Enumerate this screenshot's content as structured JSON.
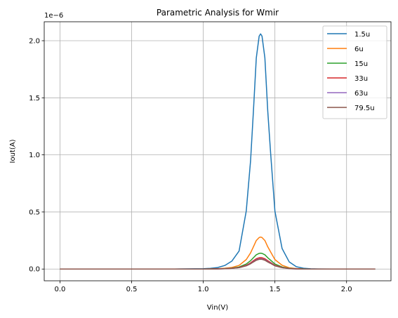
{
  "chart_data": {
    "type": "line",
    "title": "Parametric Analysis for Wmir",
    "xlabel": "Vin(V)",
    "ylabel": "Iout(A)",
    "y_offset_label": "1e−6",
    "xlim": [
      -0.11,
      2.31
    ],
    "ylim": [
      -0.103,
      2.166
    ],
    "x_ticks": [
      0.0,
      0.5,
      1.0,
      1.5,
      2.0
    ],
    "x_tick_labels": [
      "0.0",
      "0.5",
      "1.0",
      "1.5",
      "2.0"
    ],
    "y_ticks": [
      0.0,
      0.5,
      1.0,
      1.5,
      2.0
    ],
    "y_tick_labels": [
      "0.0",
      "0.5",
      "1.0",
      "1.5",
      "2.0"
    ],
    "grid": true,
    "legend_position": "top-right",
    "x": [
      0.0,
      0.2,
      0.4,
      0.6,
      0.8,
      1.0,
      1.05,
      1.1,
      1.15,
      1.2,
      1.25,
      1.3,
      1.33,
      1.35,
      1.37,
      1.39,
      1.4,
      1.41,
      1.43,
      1.45,
      1.47,
      1.5,
      1.55,
      1.6,
      1.65,
      1.7,
      1.75,
      1.8,
      1.9,
      2.0,
      2.2
    ],
    "series": [
      {
        "name": "1.5u",
        "color": "#1f77b4",
        "values": [
          0,
          0,
          0,
          0,
          0,
          0.003,
          0.006,
          0.013,
          0.031,
          0.07,
          0.158,
          0.509,
          0.947,
          1.384,
          1.849,
          2.04,
          2.06,
          2.04,
          1.849,
          1.384,
          1.016,
          0.507,
          0.18,
          0.062,
          0.02,
          0.007,
          0.002,
          0.001,
          0,
          0,
          0
        ]
      },
      {
        "name": "6u",
        "color": "#ff7f0e",
        "values": [
          0,
          0,
          0,
          0,
          0,
          0,
          0.001,
          0.003,
          0.007,
          0.014,
          0.032,
          0.083,
          0.141,
          0.195,
          0.25,
          0.276,
          0.28,
          0.276,
          0.25,
          0.195,
          0.15,
          0.083,
          0.033,
          0.011,
          0.004,
          0.001,
          0,
          0,
          0,
          0,
          0
        ]
      },
      {
        "name": "15u",
        "color": "#2ca02c",
        "values": [
          0,
          0,
          0,
          0,
          0,
          0,
          0.001,
          0.002,
          0.004,
          0.008,
          0.018,
          0.044,
          0.073,
          0.099,
          0.125,
          0.137,
          0.139,
          0.137,
          0.125,
          0.099,
          0.077,
          0.044,
          0.018,
          0.006,
          0.002,
          0.001,
          0,
          0,
          0,
          0,
          0
        ]
      },
      {
        "name": "33u",
        "color": "#d62728",
        "values": [
          0,
          0,
          0,
          0,
          0,
          0,
          0.001,
          0.002,
          0.003,
          0.006,
          0.014,
          0.033,
          0.054,
          0.073,
          0.09,
          0.099,
          0.1,
          0.099,
          0.09,
          0.073,
          0.057,
          0.033,
          0.014,
          0.005,
          0.002,
          0,
          0,
          0,
          0,
          0,
          0
        ]
      },
      {
        "name": "63u",
        "color": "#9467bd",
        "values": [
          0,
          0,
          0,
          0,
          0,
          0,
          0,
          0.001,
          0.003,
          0.006,
          0.012,
          0.029,
          0.048,
          0.065,
          0.081,
          0.089,
          0.09,
          0.089,
          0.081,
          0.065,
          0.051,
          0.029,
          0.012,
          0.004,
          0.001,
          0,
          0,
          0,
          0,
          0,
          0
        ]
      },
      {
        "name": "79.5u",
        "color": "#8c564b",
        "values": [
          0,
          0,
          0,
          0,
          0,
          0,
          0,
          0.001,
          0.003,
          0.006,
          0.012,
          0.028,
          0.046,
          0.062,
          0.077,
          0.085,
          0.086,
          0.085,
          0.077,
          0.062,
          0.049,
          0.028,
          0.012,
          0.004,
          0.001,
          0,
          0,
          0,
          0,
          0,
          0
        ]
      }
    ]
  }
}
